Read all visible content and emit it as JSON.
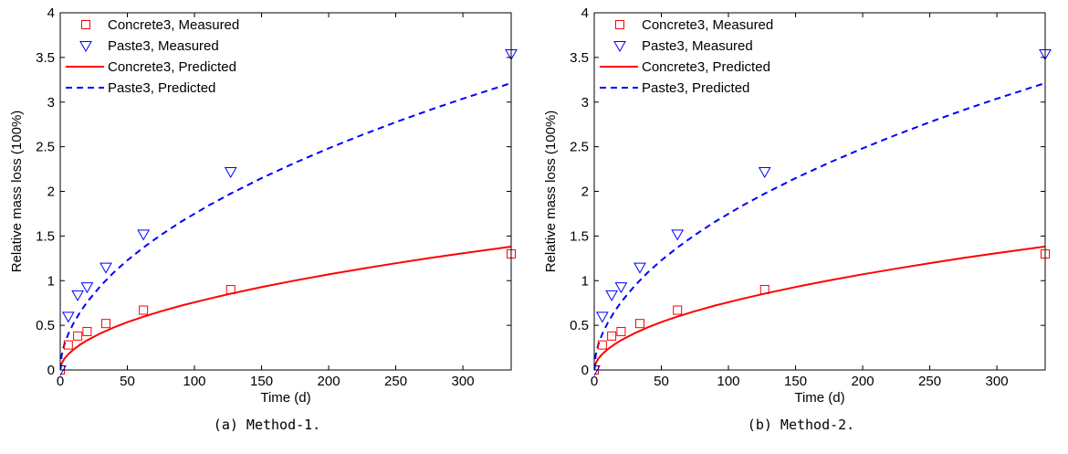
{
  "captions": [
    "(a) Method-1.",
    "(b) Method-2."
  ],
  "colors": {
    "concrete": "#ff0000",
    "paste": "#0000ff",
    "axis": "#000000"
  },
  "chart_data": [
    {
      "type": "line",
      "title": "",
      "xlabel": "Time (d)",
      "ylabel": "Relative mass loss (100%)",
      "xlim": [
        0,
        336
      ],
      "ylim": [
        0,
        4
      ],
      "xticks": [
        0,
        50,
        100,
        150,
        200,
        250,
        300
      ],
      "yticks": [
        0,
        0.5,
        1,
        1.5,
        2,
        2.5,
        3,
        3.5,
        4
      ],
      "xtick_labels": [
        "0",
        "50",
        "100",
        "150",
        "200",
        "250",
        "300"
      ],
      "ytick_labels": [
        "0",
        "0.5",
        "1",
        "1.5",
        "2",
        "2.5",
        "3",
        "3.5",
        "4"
      ],
      "grid": false,
      "legend_position": "top-left",
      "series": [
        {
          "name": "Concrete3, Measured",
          "kind": "markers",
          "marker": "square",
          "color": "#ff0000",
          "x": [
            0,
            6,
            13,
            20,
            34,
            62,
            127,
            336
          ],
          "y": [
            0,
            0.28,
            0.38,
            0.43,
            0.52,
            0.67,
            0.9,
            1.3
          ]
        },
        {
          "name": "Paste3, Measured",
          "kind": "markers",
          "marker": "triangle-down",
          "color": "#0000ff",
          "x": [
            0,
            6,
            13,
            20,
            34,
            62,
            127,
            336
          ],
          "y": [
            0,
            0.6,
            0.84,
            0.93,
            1.15,
            1.52,
            2.22,
            3.54
          ]
        },
        {
          "name": "Concrete3, Predicted",
          "kind": "line",
          "style": "solid",
          "color": "#ff0000",
          "x": [
            0,
            1,
            3,
            6,
            10,
            15,
            20,
            30,
            40,
            50,
            62,
            75,
            90,
            110,
            127,
            150,
            175,
            200,
            225,
            250,
            275,
            300,
            336
          ],
          "y": [
            0,
            0.07,
            0.125,
            0.177,
            0.23,
            0.285,
            0.332,
            0.41,
            0.477,
            0.535,
            0.597,
            0.657,
            0.72,
            0.795,
            0.854,
            0.928,
            1.002,
            1.07,
            1.134,
            1.195,
            1.253,
            1.307,
            1.381
          ]
        },
        {
          "name": "Paste3, Predicted",
          "kind": "line",
          "style": "dashed",
          "color": "#0000ff",
          "x": [
            0,
            1,
            3,
            6,
            10,
            15,
            20,
            30,
            40,
            50,
            62,
            75,
            90,
            110,
            127,
            150,
            175,
            200,
            225,
            250,
            275,
            300,
            336
          ],
          "y": [
            0,
            0.159,
            0.283,
            0.404,
            0.526,
            0.652,
            0.76,
            0.941,
            1.094,
            1.228,
            1.371,
            1.512,
            1.66,
            1.837,
            1.975,
            2.148,
            2.321,
            2.482,
            2.633,
            2.775,
            2.91,
            3.038,
            3.213
          ]
        }
      ]
    },
    {
      "type": "line",
      "title": "",
      "xlabel": "Time (d)",
      "ylabel": "Relative mass loss (100%)",
      "xlim": [
        0,
        336
      ],
      "ylim": [
        0,
        4
      ],
      "xticks": [
        0,
        50,
        100,
        150,
        200,
        250,
        300
      ],
      "yticks": [
        0,
        0.5,
        1,
        1.5,
        2,
        2.5,
        3,
        3.5,
        4
      ],
      "xtick_labels": [
        "0",
        "50",
        "100",
        "150",
        "200",
        "250",
        "300"
      ],
      "ytick_labels": [
        "0",
        "0.5",
        "1",
        "1.5",
        "2",
        "2.5",
        "3",
        "3.5",
        "4"
      ],
      "grid": false,
      "legend_position": "top-left",
      "series": [
        {
          "name": "Concrete3, Measured",
          "kind": "markers",
          "marker": "square",
          "color": "#ff0000",
          "x": [
            0,
            6,
            13,
            20,
            34,
            62,
            127,
            336
          ],
          "y": [
            0,
            0.28,
            0.38,
            0.43,
            0.52,
            0.67,
            0.9,
            1.3
          ]
        },
        {
          "name": "Paste3, Measured",
          "kind": "markers",
          "marker": "triangle-down",
          "color": "#0000ff",
          "x": [
            0,
            6,
            13,
            20,
            34,
            62,
            127,
            336
          ],
          "y": [
            0,
            0.6,
            0.84,
            0.93,
            1.15,
            1.52,
            2.22,
            3.54
          ]
        },
        {
          "name": "Concrete3, Predicted",
          "kind": "line",
          "style": "solid",
          "color": "#ff0000",
          "x": [
            0,
            1,
            3,
            6,
            10,
            15,
            20,
            30,
            40,
            50,
            62,
            75,
            90,
            110,
            127,
            150,
            175,
            200,
            225,
            250,
            275,
            300,
            336
          ],
          "y": [
            0,
            0.07,
            0.126,
            0.178,
            0.231,
            0.286,
            0.333,
            0.411,
            0.478,
            0.536,
            0.598,
            0.658,
            0.721,
            0.796,
            0.855,
            0.929,
            1.003,
            1.071,
            1.135,
            1.196,
            1.254,
            1.308,
            1.383
          ]
        },
        {
          "name": "Paste3, Predicted",
          "kind": "line",
          "style": "dashed",
          "color": "#0000ff",
          "x": [
            0,
            1,
            3,
            6,
            10,
            15,
            20,
            30,
            40,
            50,
            62,
            75,
            90,
            110,
            127,
            150,
            175,
            200,
            225,
            250,
            275,
            300,
            336
          ],
          "y": [
            0,
            0.159,
            0.283,
            0.404,
            0.526,
            0.652,
            0.76,
            0.941,
            1.094,
            1.228,
            1.371,
            1.512,
            1.66,
            1.837,
            1.975,
            2.148,
            2.321,
            2.482,
            2.633,
            2.775,
            2.91,
            3.038,
            3.213
          ]
        }
      ]
    }
  ]
}
